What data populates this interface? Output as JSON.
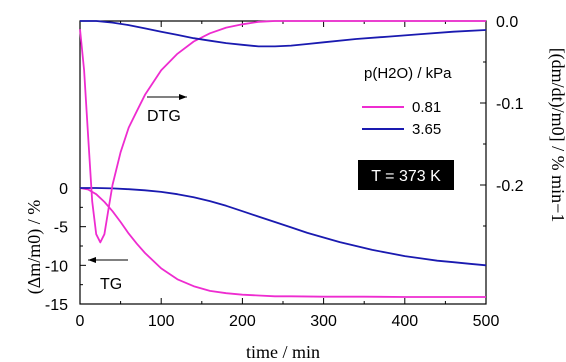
{
  "chart_data": {
    "type": "line",
    "xlabel": "time / min",
    "x_ticks": [
      0,
      100,
      200,
      300,
      400,
      500
    ],
    "xlim": [
      0,
      500
    ],
    "tg_axis": {
      "label": "(Δm/m0) / %",
      "ticks": [
        "0",
        "-5",
        "-10",
        "-15"
      ],
      "range": [
        -15,
        0
      ]
    },
    "dtg_axis": {
      "label": "[(dm/dt)/m0] / % min−1",
      "ticks": [
        "0.0",
        "-0.1",
        "-0.2"
      ],
      "range": [
        -0.3,
        0.0
      ]
    },
    "legend": {
      "title": "p(H2O) / kPa",
      "entries": [
        "0.81",
        "3.65"
      ]
    },
    "annotations": {
      "dtg": "DTG",
      "tg": "TG",
      "temperature": "T = 373 K"
    },
    "colors": {
      "magenta": "#ee2cd0",
      "blue": "#1a1ab0"
    },
    "series": [
      {
        "name": "0.81",
        "curve": "TG",
        "color": "#ee2cd0",
        "x": [
          0,
          10,
          20,
          30,
          40,
          50,
          60,
          70,
          80,
          100,
          120,
          140,
          160,
          180,
          200,
          220,
          240,
          260,
          300,
          350,
          400,
          450,
          500
        ],
        "y": [
          0,
          -0.2,
          -0.8,
          -1.8,
          -3.0,
          -4.4,
          -5.9,
          -7.2,
          -8.4,
          -10.4,
          -11.8,
          -12.7,
          -13.3,
          -13.6,
          -13.8,
          -13.9,
          -14.0,
          -14.0,
          -14.05,
          -14.05,
          -14.1,
          -14.1,
          -14.1
        ]
      },
      {
        "name": "3.65",
        "curve": "TG",
        "color": "#1a1ab0",
        "x": [
          0,
          20,
          40,
          60,
          80,
          100,
          120,
          140,
          160,
          180,
          200,
          220,
          240,
          260,
          280,
          300,
          320,
          340,
          360,
          380,
          400,
          420,
          440,
          460,
          480,
          500
        ],
        "y": [
          0,
          0,
          -0.05,
          -0.15,
          -0.3,
          -0.5,
          -0.8,
          -1.2,
          -1.7,
          -2.3,
          -3.0,
          -3.7,
          -4.4,
          -5.1,
          -5.8,
          -6.4,
          -7.0,
          -7.5,
          -8.0,
          -8.4,
          -8.8,
          -9.1,
          -9.4,
          -9.6,
          -9.8,
          -10.0
        ]
      },
      {
        "name": "0.81",
        "curve": "DTG",
        "color": "#ee2cd0",
        "x": [
          0,
          5,
          10,
          15,
          20,
          25,
          30,
          35,
          40,
          50,
          60,
          70,
          80,
          90,
          100,
          120,
          140,
          160,
          180,
          200,
          220,
          240,
          300,
          400,
          500
        ],
        "y": [
          -0.01,
          -0.06,
          -0.14,
          -0.22,
          -0.26,
          -0.27,
          -0.26,
          -0.23,
          -0.2,
          -0.16,
          -0.13,
          -0.11,
          -0.09,
          -0.075,
          -0.06,
          -0.04,
          -0.025,
          -0.015,
          -0.008,
          -0.004,
          -0.001,
          0.0,
          0.0,
          0.0,
          0.0
        ]
      },
      {
        "name": "3.65",
        "curve": "DTG",
        "color": "#1a1ab0",
        "x": [
          0,
          20,
          40,
          60,
          80,
          100,
          120,
          140,
          160,
          180,
          200,
          220,
          240,
          260,
          280,
          300,
          340,
          380,
          420,
          460,
          500
        ],
        "y": [
          0.0,
          0.0,
          -0.002,
          -0.005,
          -0.009,
          -0.013,
          -0.017,
          -0.021,
          -0.024,
          -0.027,
          -0.029,
          -0.031,
          -0.031,
          -0.03,
          -0.028,
          -0.026,
          -0.022,
          -0.019,
          -0.016,
          -0.013,
          -0.011
        ]
      }
    ]
  }
}
